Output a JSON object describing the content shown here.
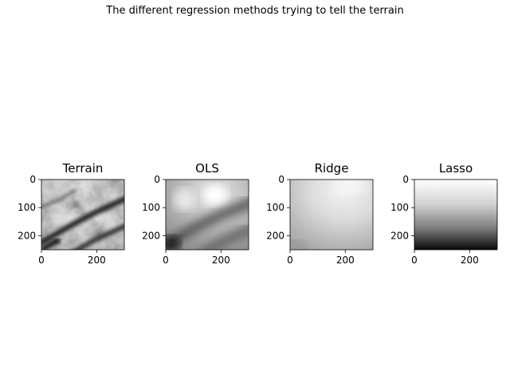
{
  "figure": {
    "suptitle": "The different regression methods trying to tell the terrain"
  },
  "colormap": "gray",
  "chart_data": [
    {
      "type": "heatmap",
      "title": "Terrain",
      "xlim": [
        0,
        300
      ],
      "ylim": [
        250,
        0
      ],
      "xticks": [
        0,
        200
      ],
      "yticks": [
        0,
        100,
        200
      ],
      "xticklabels": [
        "0",
        "200"
      ],
      "yticklabels": [
        "0",
        "100",
        "200"
      ]
    },
    {
      "type": "heatmap",
      "title": "OLS",
      "xlim": [
        0,
        300
      ],
      "ylim": [
        250,
        0
      ],
      "xticks": [
        0,
        200
      ],
      "yticks": [
        0,
        100,
        200
      ],
      "xticklabels": [
        "0",
        "200"
      ],
      "yticklabels": [
        "0",
        "100",
        "200"
      ]
    },
    {
      "type": "heatmap",
      "title": "Ridge",
      "xlim": [
        0,
        300
      ],
      "ylim": [
        250,
        0
      ],
      "xticks": [
        0,
        200
      ],
      "yticks": [
        0,
        100,
        200
      ],
      "xticklabels": [
        "0",
        "200"
      ],
      "yticklabels": [
        "0",
        "100",
        "200"
      ]
    },
    {
      "type": "heatmap",
      "title": "Lasso",
      "xlim": [
        0,
        300
      ],
      "ylim": [
        250,
        0
      ],
      "xticks": [
        0,
        200
      ],
      "yticks": [
        0,
        100,
        200
      ],
      "xticklabels": [
        "0",
        "200"
      ],
      "yticklabels": [
        "0",
        "100",
        "200"
      ]
    }
  ]
}
